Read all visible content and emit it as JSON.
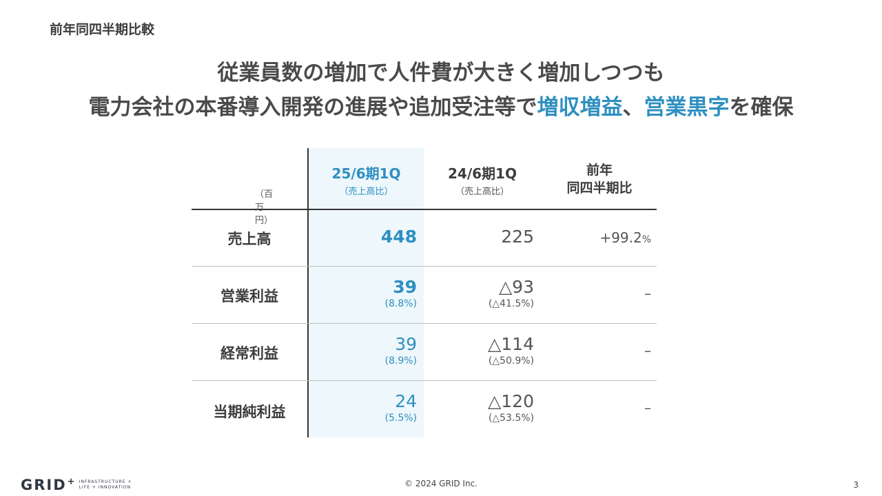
{
  "section_title": "前年同四半期比較",
  "headline": {
    "line1": "従業員数の増加で人件費が大きく増加しつつも",
    "line2_prefix": "電力会社の本番導入開発の進展や追加受注等で",
    "line2_accent1": "増収増益",
    "line2_sep": "、",
    "line2_accent2": "営業黒字",
    "line2_suffix": "を確保"
  },
  "table": {
    "unit": "（百万円）",
    "headers": {
      "current": {
        "main": "25/6期1Q",
        "sub": "（売上高比）"
      },
      "previous": {
        "main": "24/6期1Q",
        "sub": "（売上高比）"
      },
      "yoy": {
        "line1": "前年",
        "line2": "同四半期比"
      }
    },
    "rows": [
      {
        "label": "売上高",
        "current": "448",
        "current_pct": "",
        "previous": "225",
        "previous_pct": "",
        "yoy": "+99.2",
        "yoy_unit": "%"
      },
      {
        "label": "営業利益",
        "current": "39",
        "current_pct": "(8.8%)",
        "previous": "△93",
        "previous_pct": "(△41.5%)",
        "yoy": "–",
        "yoy_unit": ""
      },
      {
        "label": "経常利益",
        "current": "39",
        "current_pct": "(8.9%)",
        "previous": "△114",
        "previous_pct": "(△50.9%)",
        "yoy": "–",
        "yoy_unit": ""
      },
      {
        "label": "当期純利益",
        "current": "24",
        "current_pct": "(5.5%)",
        "previous": "△120",
        "previous_pct": "(△53.5%)",
        "yoy": "–",
        "yoy_unit": ""
      }
    ]
  },
  "footer": {
    "logo_text": "GRID",
    "logo_plus": "+",
    "logo_tagline1": "INFRASTRUCTURE +",
    "logo_tagline2": "LIFE + INNOVATION",
    "copyright": "© 2024 GRID Inc.",
    "page_number": "3"
  },
  "colors": {
    "accent": "#2e8fc0",
    "highlight_column": "#eef7fc",
    "text": "#404040"
  }
}
